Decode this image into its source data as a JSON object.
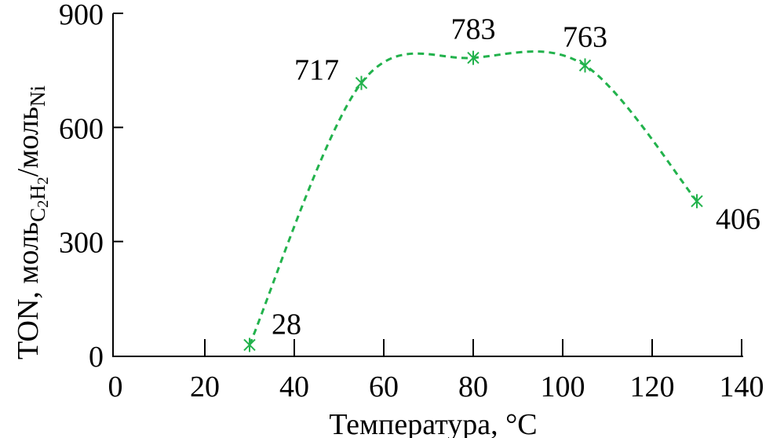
{
  "chart_data": {
    "type": "line",
    "xlabel": "Температура, °С",
    "ylabel": {
      "main": "TON, моль",
      "sub1": "C",
      "sub1b": "2",
      "sub1c": "H",
      "sub1d": "2",
      "sep": "/моль",
      "sub2": "Ni"
    },
    "xlim": [
      0,
      140
    ],
    "ylim": [
      0,
      900
    ],
    "xticks": [
      "0",
      "20",
      "40",
      "60",
      "80",
      "100",
      "120",
      "140"
    ],
    "yticks": [
      "0",
      "300",
      "600",
      "900"
    ],
    "grid": false,
    "series": [
      {
        "x": [
          30,
          55,
          80,
          105,
          130
        ],
        "y": [
          28,
          717,
          783,
          763,
          406
        ],
        "labels": [
          "28",
          "717",
          "783",
          "763",
          "406"
        ],
        "color": "#22b24c",
        "line_style": "dashed",
        "marker": "asterisk"
      }
    ]
  }
}
